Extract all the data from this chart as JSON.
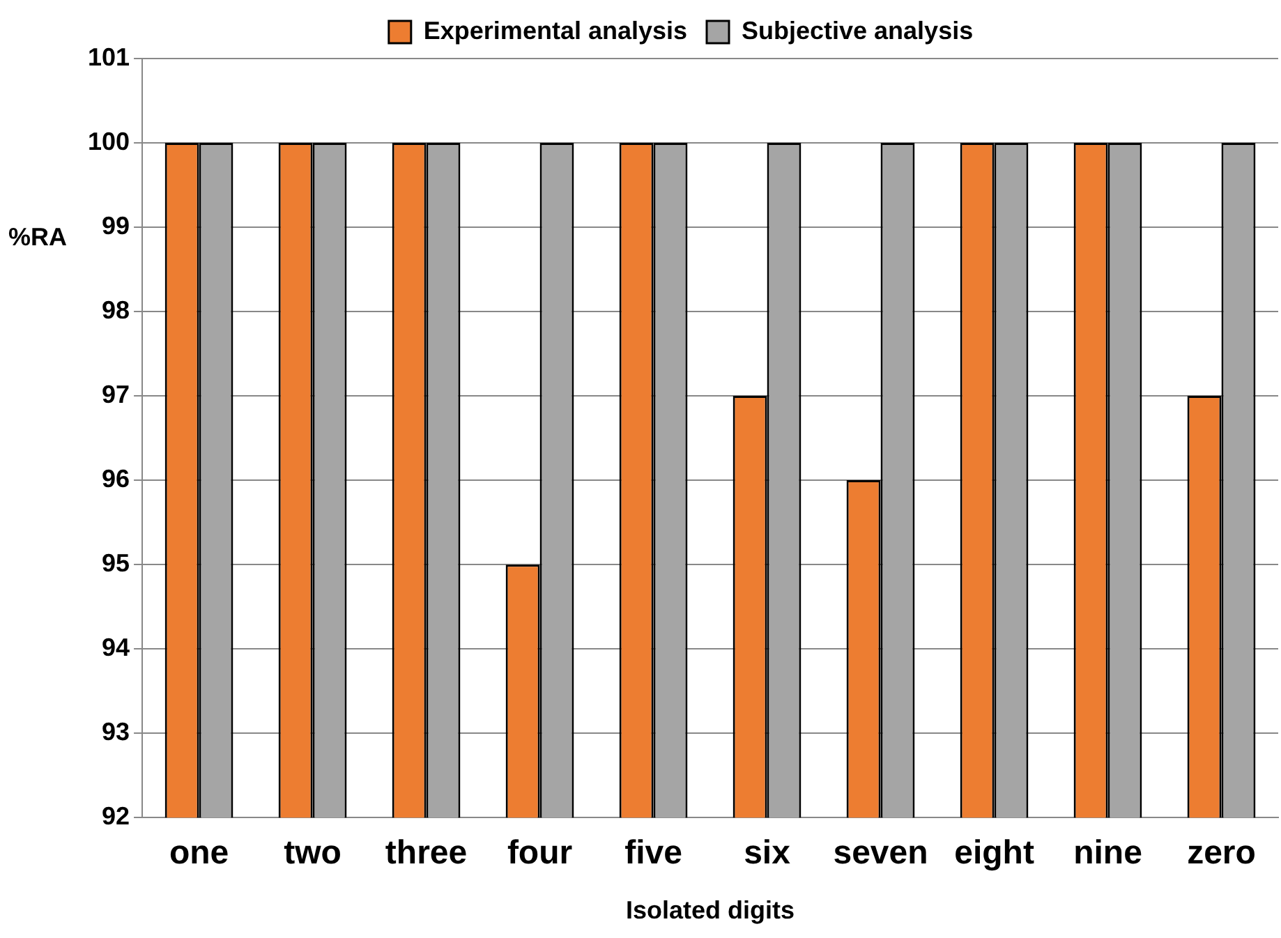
{
  "chart_data": {
    "type": "bar",
    "xlabel": "Isolated digits",
    "ylabel": "%RA",
    "categories": [
      "one",
      "two",
      "three",
      "four",
      "five",
      "six",
      "seven",
      "eight",
      "nine",
      "zero"
    ],
    "series": [
      {
        "name": "Experimental analysis",
        "color": "#ed7d31",
        "values": [
          100,
          100,
          100,
          95,
          100,
          97,
          96,
          100,
          100,
          97
        ]
      },
      {
        "name": "Subjective analysis",
        "color": "#a5a5a5",
        "values": [
          100,
          100,
          100,
          100,
          100,
          100,
          100,
          100,
          100,
          100
        ]
      }
    ],
    "ylim": [
      92,
      101
    ],
    "yticks": [
      92,
      93,
      94,
      95,
      96,
      97,
      98,
      99,
      100,
      101
    ],
    "grid": "y",
    "legend": "top"
  }
}
